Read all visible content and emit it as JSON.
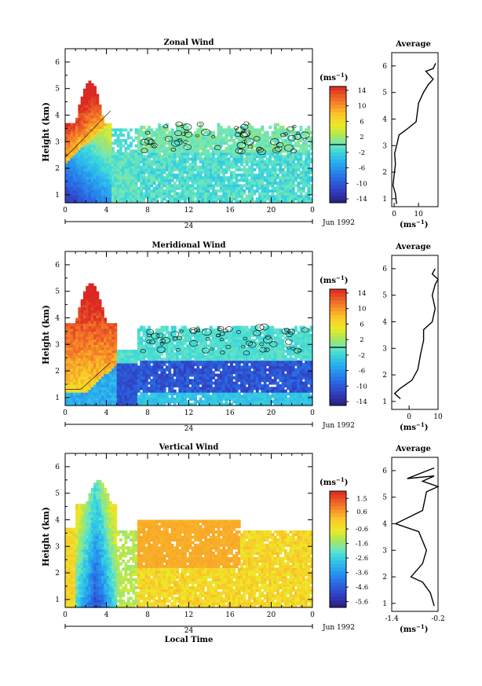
{
  "chart_data": [
    {
      "type": "heatmap",
      "title": "Zonal Wind",
      "ylabel": "Height (km)",
      "ylim": [
        0.7,
        6.5
      ],
      "yticks": [
        "1",
        "2",
        "3",
        "4",
        "5",
        "6"
      ],
      "xlim": [
        0,
        24
      ],
      "xticks": [
        "0",
        "4",
        "8",
        "12",
        "16",
        "20",
        "0"
      ],
      "date_marker": "24",
      "date_label": "Jun 1992",
      "colorbar": {
        "unit": "(ms",
        "unit_exp": "−1",
        "range": [
          -15,
          15
        ],
        "ticks": [
          "14",
          "10",
          "6",
          "2",
          "-2",
          "-6",
          "-10",
          "-14"
        ],
        "tick_values": [
          14,
          10,
          6,
          2,
          -2,
          -6,
          -10,
          -14
        ],
        "zero_line": 0
      },
      "description_regions": [
        {
          "hours": [
            0,
            4
          ],
          "heights_km": [
            1.0,
            2.6
          ],
          "value_approx": -12
        },
        {
          "hours": [
            1,
            4
          ],
          "heights_km": [
            3.5,
            5.4
          ],
          "value_approx": 13
        },
        {
          "hours": [
            7,
            24
          ],
          "heights_km": [
            0.9,
            3.7
          ],
          "value_approx": 0
        }
      ],
      "average_profile": {
        "title": "Average",
        "xlabel": "(ms",
        "xlabel_exp": "−1",
        "xlim": [
          -1,
          18
        ],
        "xticks": [
          "0",
          "10"
        ],
        "xtick_values": [
          0,
          10
        ],
        "yticks": [
          "1",
          "2",
          "3",
          "4",
          "5",
          "6"
        ],
        "points": [
          [
            1,
            0.8
          ],
          [
            0.5,
            1.2
          ],
          [
            -0.5,
            1.5
          ],
          [
            0,
            1.9
          ],
          [
            0.5,
            2.3
          ],
          [
            0.2,
            2.7
          ],
          [
            1,
            3.0
          ],
          [
            2,
            3.4
          ],
          [
            5,
            3.6
          ],
          [
            9,
            3.9
          ],
          [
            10,
            4.6
          ],
          [
            12,
            5.0
          ],
          [
            14,
            5.3
          ],
          [
            16,
            5.5
          ],
          [
            13,
            5.8
          ],
          [
            16,
            5.9
          ],
          [
            17,
            6.1
          ]
        ]
      }
    },
    {
      "type": "heatmap",
      "title": "Meridional Wind",
      "ylabel": "Height (km)",
      "ylim": [
        0.7,
        6.5
      ],
      "yticks": [
        "1",
        "2",
        "3",
        "4",
        "5",
        "6"
      ],
      "xlim": [
        0,
        24
      ],
      "xticks": [
        "0",
        "4",
        "8",
        "12",
        "16",
        "20",
        "0"
      ],
      "date_marker": "24",
      "date_label": "Jun 1992",
      "colorbar": {
        "unit": "(ms",
        "unit_exp": "−1",
        "range": [
          -15,
          15
        ],
        "ticks": [
          "14",
          "10",
          "6",
          "2",
          "-2",
          "-6",
          "-10",
          "-14"
        ],
        "tick_values": [
          14,
          10,
          6,
          2,
          -2,
          -6,
          -10,
          -14
        ],
        "zero_line": 0
      },
      "description_regions": [
        {
          "hours": [
            0,
            5
          ],
          "heights_km": [
            2.2,
            5.3
          ],
          "value_approx": 9
        },
        {
          "hours": [
            4,
            24
          ],
          "heights_km": [
            1.0,
            2.4
          ],
          "value_approx": -12
        },
        {
          "hours": [
            7,
            24
          ],
          "heights_km": [
            2.4,
            3.6
          ],
          "value_approx": -2
        }
      ],
      "average_profile": {
        "title": "Average",
        "xlabel": "(ms",
        "xlabel_exp": "−1",
        "xlim": [
          -6,
          10
        ],
        "xticks": [
          "0",
          "10"
        ],
        "xtick_values": [
          0,
          10
        ],
        "yticks": [
          "1",
          "2",
          "3",
          "4",
          "5",
          "6"
        ],
        "points": [
          [
            -3,
            1.1
          ],
          [
            -5,
            1.3
          ],
          [
            -3,
            1.5
          ],
          [
            1,
            1.8
          ],
          [
            3,
            2.2
          ],
          [
            4,
            2.8
          ],
          [
            5,
            3.3
          ],
          [
            5,
            3.7
          ],
          [
            8,
            4.0
          ],
          [
            9,
            4.5
          ],
          [
            8,
            5.0
          ],
          [
            9,
            5.4
          ],
          [
            10,
            5.6
          ],
          [
            8,
            5.8
          ],
          [
            9,
            6.0
          ]
        ]
      }
    },
    {
      "type": "heatmap",
      "title": "Vertical Wind",
      "ylabel": "Height (km)",
      "xlabel": "Local Time",
      "ylim": [
        0.7,
        6.5
      ],
      "yticks": [
        "1",
        "2",
        "3",
        "4",
        "5",
        "6"
      ],
      "xlim": [
        0,
        24
      ],
      "xticks": [
        "0",
        "4",
        "8",
        "12",
        "16",
        "20",
        "0"
      ],
      "date_marker": "24",
      "date_label": "Jun 1992",
      "colorbar": {
        "unit": "(ms",
        "unit_exp": "−1",
        "range": [
          -6.0,
          2.0
        ],
        "ticks": [
          "1.5",
          "0.6",
          "-0.6",
          "-1.6",
          "-2.6",
          "-3.6",
          "-4.6",
          "-5.6"
        ],
        "tick_values": [
          1.5,
          0.6,
          -0.6,
          -1.6,
          -2.6,
          -3.6,
          -4.6,
          -5.6
        ],
        "zero_line": null
      },
      "description_regions": [
        {
          "hours": [
            1,
            5
          ],
          "heights_km": [
            0.8,
            5.6
          ],
          "value_approx": -4
        },
        {
          "hours": [
            7,
            24
          ],
          "heights_km": [
            0.8,
            4.0
          ],
          "value_approx": 0.3
        }
      ],
      "average_profile": {
        "title": "Average",
        "xlabel": "(ms",
        "xlabel_exp": "−1",
        "xlim": [
          -1.4,
          -0.2
        ],
        "xticks": [
          "-1.4",
          "-0.2"
        ],
        "xtick_values": [
          -1.4,
          -0.2
        ],
        "yticks": [
          "1",
          "2",
          "3",
          "4",
          "5",
          "6"
        ],
        "points": [
          [
            -0.3,
            0.9
          ],
          [
            -0.4,
            1.4
          ],
          [
            -0.6,
            1.8
          ],
          [
            -0.9,
            2.0
          ],
          [
            -0.6,
            2.5
          ],
          [
            -0.5,
            3.0
          ],
          [
            -0.7,
            3.7
          ],
          [
            -1.3,
            4.0
          ],
          [
            -0.6,
            4.5
          ],
          [
            -0.5,
            5.2
          ],
          [
            -0.2,
            5.4
          ],
          [
            -0.6,
            5.6
          ],
          [
            -0.3,
            5.8
          ],
          [
            -1.0,
            5.7
          ],
          [
            -0.3,
            6.1
          ]
        ]
      }
    }
  ]
}
